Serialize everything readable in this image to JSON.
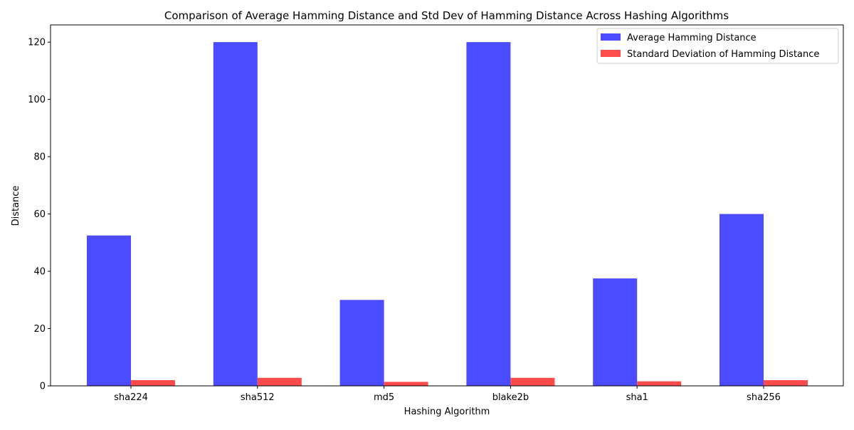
{
  "chart_data": {
    "type": "bar",
    "title": "Comparison of Average Hamming Distance and Std Dev of Hamming Distance Across Hashing Algorithms",
    "xlabel": "Hashing Algorithm",
    "ylabel": "Distance",
    "categories": [
      "sha224",
      "sha512",
      "md5",
      "blake2b",
      "sha1",
      "sha256"
    ],
    "ylim": [
      0,
      126
    ],
    "yticks": [
      0,
      20,
      40,
      60,
      80,
      100,
      120
    ],
    "grid": false,
    "legend_position": "top-right",
    "series": [
      {
        "name": "Average Hamming Distance",
        "color": "#4b4bff",
        "values": [
          52.5,
          120,
          30,
          120,
          37.5,
          60
        ]
      },
      {
        "name": "Standard Deviation of Hamming Distance",
        "color": "#ff4b4b",
        "values": [
          2.0,
          2.8,
          1.4,
          2.8,
          1.6,
          2.0
        ]
      }
    ]
  }
}
